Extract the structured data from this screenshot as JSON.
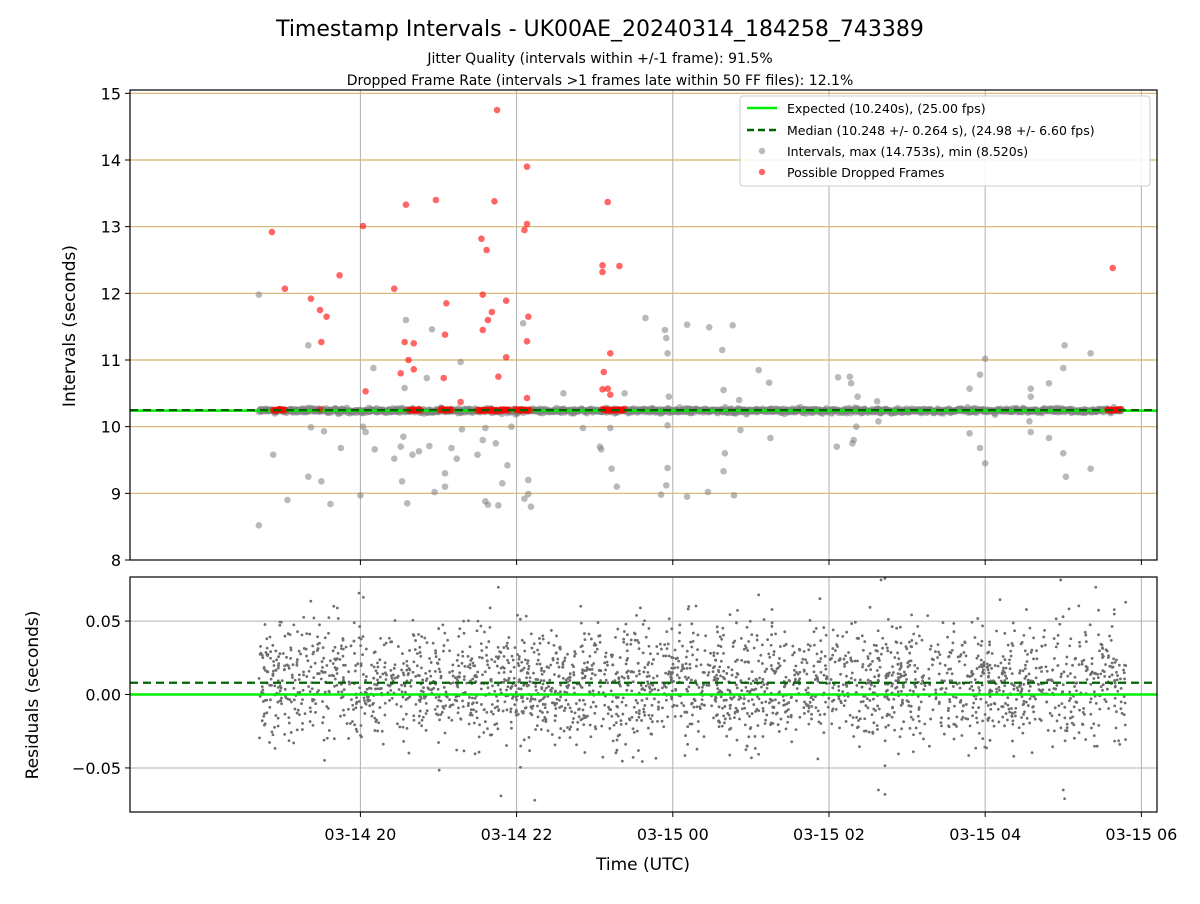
{
  "title": "Timestamp Intervals - UK00AE_20240314_184258_743389",
  "subtitle_1": "Jitter Quality (intervals within +/-1 frame): 91.5%",
  "subtitle_2": "Dropped Frame Rate (intervals >1 frames late within 50 FF files): 12.1%",
  "colors": {
    "expected": "#00ee00",
    "median": "#006400",
    "intervals": "#808080",
    "dropped": "#ff0000",
    "frame_lines": "#d4b56a",
    "grid": "#b0b0b0"
  },
  "chart_data": [
    {
      "type": "scatter",
      "panel": "top",
      "ylabel": "Intervals (seconds)",
      "ylim": [
        8,
        15.05
      ],
      "yticks": [
        "8",
        "9",
        "10",
        "11",
        "12",
        "13",
        "14",
        "15"
      ],
      "x_axis": "time (hours since 2024-03-14 00:00 UTC)",
      "xlim": [
        17.05,
        30.2
      ],
      "grid": true,
      "frame_lines": [
        9.0,
        10.0,
        11.0,
        12.0,
        13.0,
        14.0,
        15.0
      ],
      "legend_position": "upper right",
      "legend": [
        "Expected (10.240s), (25.00 fps)",
        "Median (10.248 +/- 0.264 s), (24.98 +/- 6.60 fps)",
        "Intervals, max (14.753s), min (8.520s)",
        "Possible Dropped Frames"
      ],
      "expected": 10.24,
      "median": 10.248,
      "baseline_band": {
        "x_start": "03-14 18:42",
        "x_end": "03-15 05:45",
        "y": 10.24
      },
      "dropped_clusters": [
        {
          "x_start": "03-14 18:53",
          "x_end": "03-14 19:02",
          "y": 10.25
        },
        {
          "x_start": "03-14 20:37",
          "x_end": "03-14 20:46",
          "y": 10.25
        },
        {
          "x_start": "03-14 21:01",
          "x_end": "03-14 21:10",
          "y": 10.25
        },
        {
          "x_start": "03-14 21:30",
          "x_end": "03-14 21:54",
          "y": 10.25
        },
        {
          "x_start": "03-14 21:59",
          "x_end": "03-14 22:10",
          "y": 10.25
        },
        {
          "x_start": "03-14 23:06",
          "x_end": "03-14 23:23",
          "y": 10.25
        },
        {
          "x_start": "03-15 05:34",
          "x_end": "03-15 05:44",
          "y": 10.25
        }
      ],
      "series": [
        {
          "name": "Intervals, max (14.753s), min (8.520s)",
          "points": [
            [
              "03-14 18:42",
              11.98
            ],
            [
              "03-14 18:42",
              8.52
            ],
            [
              "03-14 18:53",
              9.58
            ],
            [
              "03-14 19:04",
              8.9
            ],
            [
              "03-14 19:20",
              11.22
            ],
            [
              "03-14 19:20",
              9.25
            ],
            [
              "03-14 19:22",
              9.99
            ],
            [
              "03-14 19:30",
              9.18
            ],
            [
              "03-14 19:32",
              9.93
            ],
            [
              "03-14 19:37",
              8.84
            ],
            [
              "03-14 19:45",
              9.68
            ],
            [
              "03-14 20:00",
              8.97
            ],
            [
              "03-14 20:02",
              10.0
            ],
            [
              "03-14 20:04",
              9.92
            ],
            [
              "03-14 20:10",
              10.88
            ],
            [
              "03-14 20:11",
              9.66
            ],
            [
              "03-14 20:26",
              9.52
            ],
            [
              "03-14 20:31",
              9.7
            ],
            [
              "03-14 20:32",
              9.18
            ],
            [
              "03-14 20:33",
              9.85
            ],
            [
              "03-14 20:34",
              10.58
            ],
            [
              "03-14 20:35",
              11.6
            ],
            [
              "03-14 20:36",
              8.85
            ],
            [
              "03-14 20:40",
              9.58
            ],
            [
              "03-14 20:45",
              9.63
            ],
            [
              "03-14 20:51",
              10.73
            ],
            [
              "03-14 20:53",
              9.71
            ],
            [
              "03-14 20:55",
              11.46
            ],
            [
              "03-14 20:57",
              9.02
            ],
            [
              "03-14 21:05",
              9.1
            ],
            [
              "03-14 21:05",
              9.3
            ],
            [
              "03-14 21:10",
              9.68
            ],
            [
              "03-14 21:14",
              9.52
            ],
            [
              "03-14 21:17",
              10.97
            ],
            [
              "03-14 21:18",
              9.96
            ],
            [
              "03-14 21:30",
              9.58
            ],
            [
              "03-14 21:34",
              9.8
            ],
            [
              "03-14 21:36",
              8.88
            ],
            [
              "03-14 21:36",
              9.98
            ],
            [
              "03-14 21:38",
              8.83
            ],
            [
              "03-14 21:44",
              9.75
            ],
            [
              "03-14 21:46",
              8.82
            ],
            [
              "03-14 21:49",
              9.15
            ],
            [
              "03-14 21:53",
              9.42
            ],
            [
              "03-14 21:56",
              10.0
            ],
            [
              "03-14 22:05",
              11.55
            ],
            [
              "03-14 22:06",
              8.92
            ],
            [
              "03-14 22:09",
              8.99
            ],
            [
              "03-14 22:09",
              9.2
            ],
            [
              "03-14 22:11",
              8.8
            ],
            [
              "03-14 22:36",
              10.5
            ],
            [
              "03-14 22:51",
              9.98
            ],
            [
              "03-14 23:04",
              9.7
            ],
            [
              "03-14 23:05",
              9.66
            ],
            [
              "03-14 23:12",
              9.98
            ],
            [
              "03-14 23:13",
              9.37
            ],
            [
              "03-14 23:17",
              9.1
            ],
            [
              "03-14 23:23",
              10.5
            ],
            [
              "03-14 23:39",
              11.63
            ],
            [
              "03-14 23:54",
              11.45
            ],
            [
              "03-14 23:55",
              11.33
            ],
            [
              "03-14 23:56",
              11.1
            ],
            [
              "03-14 23:57",
              10.45
            ],
            [
              "03-14 23:56",
              10.02
            ],
            [
              "03-14 23:56",
              9.38
            ],
            [
              "03-14 23:55",
              9.12
            ],
            [
              "03-14 23:51",
              8.98
            ],
            [
              "03-15 00:11",
              11.53
            ],
            [
              "03-15 00:11",
              8.95
            ],
            [
              "03-15 00:28",
              11.49
            ],
            [
              "03-15 00:27",
              9.02
            ],
            [
              "03-15 00:38",
              11.15
            ],
            [
              "03-15 00:39",
              10.55
            ],
            [
              "03-15 00:39",
              9.33
            ],
            [
              "03-15 00:40",
              9.6
            ],
            [
              "03-15 00:46",
              11.52
            ],
            [
              "03-15 00:47",
              8.97
            ],
            [
              "03-15 00:51",
              10.4
            ],
            [
              "03-15 00:52",
              9.95
            ],
            [
              "03-15 01:06",
              10.85
            ],
            [
              "03-15 01:14",
              10.66
            ],
            [
              "03-15 01:15",
              9.83
            ],
            [
              "03-15 02:07",
              10.74
            ],
            [
              "03-15 02:06",
              9.7
            ],
            [
              "03-15 02:16",
              10.75
            ],
            [
              "03-15 02:17",
              10.65
            ],
            [
              "03-15 02:22",
              10.45
            ],
            [
              "03-15 02:18",
              9.75
            ],
            [
              "03-15 02:19",
              9.8
            ],
            [
              "03-15 02:21",
              10.0
            ],
            [
              "03-15 02:37",
              10.38
            ],
            [
              "03-15 02:38",
              10.08
            ],
            [
              "03-15 03:48",
              10.57
            ],
            [
              "03-15 03:48",
              9.9
            ],
            [
              "03-15 03:56",
              10.78
            ],
            [
              "03-15 03:56",
              9.68
            ],
            [
              "03-15 04:00",
              11.02
            ],
            [
              "03-15 04:00",
              9.45
            ],
            [
              "03-15 04:35",
              10.57
            ],
            [
              "03-15 04:35",
              10.45
            ],
            [
              "03-15 04:34",
              10.08
            ],
            [
              "03-15 04:35",
              9.92
            ],
            [
              "03-15 04:49",
              10.65
            ],
            [
              "03-15 04:49",
              9.83
            ],
            [
              "03-15 05:01",
              11.22
            ],
            [
              "03-15 05:00",
              10.88
            ],
            [
              "03-15 05:00",
              9.6
            ],
            [
              "03-15 05:02",
              9.25
            ],
            [
              "03-15 05:21",
              11.1
            ],
            [
              "03-15 05:21",
              9.37
            ]
          ]
        },
        {
          "name": "Possible Dropped Frames",
          "points": [
            [
              "03-14 18:52",
              12.92
            ],
            [
              "03-14 19:02",
              12.07
            ],
            [
              "03-14 19:22",
              11.92
            ],
            [
              "03-14 19:29",
              11.75
            ],
            [
              "03-14 19:30",
              11.27
            ],
            [
              "03-14 19:34",
              11.65
            ],
            [
              "03-14 19:44",
              12.27
            ],
            [
              "03-14 19:29",
              10.26
            ],
            [
              "03-14 20:02",
              13.01
            ],
            [
              "03-14 20:04",
              10.53
            ],
            [
              "03-14 20:26",
              12.07
            ],
            [
              "03-14 20:31",
              10.8
            ],
            [
              "03-14 20:34",
              11.27
            ],
            [
              "03-14 20:35",
              13.33
            ],
            [
              "03-14 20:37",
              11.0
            ],
            [
              "03-14 20:41",
              11.25
            ],
            [
              "03-14 20:41",
              10.86
            ],
            [
              "03-14 20:58",
              13.4
            ],
            [
              "03-14 21:04",
              10.73
            ],
            [
              "03-14 21:05",
              11.38
            ],
            [
              "03-14 21:06",
              11.85
            ],
            [
              "03-14 21:17",
              10.37
            ],
            [
              "03-14 21:33",
              12.82
            ],
            [
              "03-14 21:34",
              11.45
            ],
            [
              "03-14 21:34",
              11.98
            ],
            [
              "03-14 21:37",
              12.65
            ],
            [
              "03-14 21:38",
              11.6
            ],
            [
              "03-14 21:41",
              11.72
            ],
            [
              "03-14 21:43",
              13.38
            ],
            [
              "03-14 21:45",
              14.75
            ],
            [
              "03-14 21:46",
              10.75
            ],
            [
              "03-14 21:52",
              11.89
            ],
            [
              "03-14 21:52",
              11.04
            ],
            [
              "03-14 22:06",
              12.95
            ],
            [
              "03-14 22:08",
              13.04
            ],
            [
              "03-14 22:08",
              13.9
            ],
            [
              "03-14 22:08",
              11.28
            ],
            [
              "03-14 22:09",
              11.65
            ],
            [
              "03-14 22:08",
              10.43
            ],
            [
              "03-14 23:06",
              12.42
            ],
            [
              "03-14 23:06",
              12.32
            ],
            [
              "03-14 23:06",
              10.56
            ],
            [
              "03-14 23:07",
              10.82
            ],
            [
              "03-14 23:10",
              13.37
            ],
            [
              "03-14 23:10",
              10.57
            ],
            [
              "03-14 23:12",
              10.48
            ],
            [
              "03-14 23:12",
              11.1
            ],
            [
              "03-14 23:19",
              12.41
            ],
            [
              "03-15 05:38",
              12.38
            ]
          ]
        }
      ]
    },
    {
      "type": "scatter",
      "panel": "bottom",
      "xlabel": "Time (UTC)",
      "ylabel": "Residuals (seconds)",
      "ylim": [
        -0.08,
        0.08
      ],
      "yticks": [
        "−0.05",
        "0.00",
        "0.05"
      ],
      "xticks": [
        "03-14 20",
        "03-14 22",
        "03-15 00",
        "03-15 02",
        "03-15 04",
        "03-15 06"
      ],
      "grid": true,
      "expected_residual": 0.0,
      "median_residual": 0.008,
      "residual_spread": {
        "sigma": 0.02,
        "x_start": "03-14 18:42",
        "x_end": "03-15 05:48"
      },
      "extreme_points": [
        [
          "03-14 22:14",
          -0.072
        ],
        [
          "03-14 21:48",
          -0.069
        ],
        [
          "03-15 05:01",
          -0.071
        ],
        [
          "03-15 05:00",
          -0.065
        ],
        [
          "03-15 02:38",
          -0.065
        ],
        [
          "03-15 02:43",
          -0.068
        ],
        [
          "03-15 02:40",
          0.078
        ],
        [
          "03-15 02:43",
          0.079
        ],
        [
          "03-15 05:25",
          0.073
        ],
        [
          "03-15 04:58",
          0.078
        ],
        [
          "03-14 21:46",
          0.073
        ],
        [
          "03-14 19:59",
          0.069
        ]
      ]
    }
  ]
}
